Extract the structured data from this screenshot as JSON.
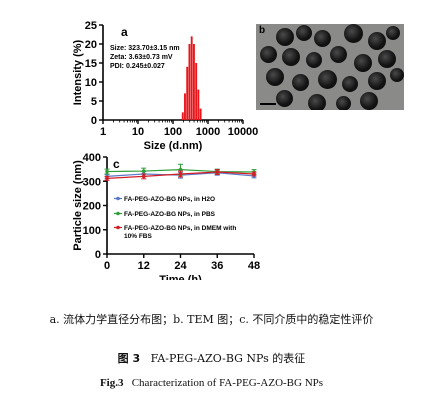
{
  "chart_data": [
    {
      "panel": "a",
      "type": "bar",
      "xlabel": "Size (d.nm)",
      "ylabel": "Intensity (%)",
      "xscale": "log",
      "xlim": [
        1,
        10000
      ],
      "ylim": [
        0,
        25
      ],
      "xticks": [
        "1",
        "10",
        "100",
        "1000",
        "10000"
      ],
      "yticks": [
        "0",
        "5",
        "10",
        "15",
        "20",
        "25"
      ],
      "color": "#e8161b",
      "x": [
        190,
        220,
        255,
        295,
        342,
        396,
        459,
        531,
        615
      ],
      "values": [
        2,
        7,
        14,
        20,
        22,
        20,
        15,
        8,
        3
      ],
      "annotations": [
        "Size: 323.70±3.15 nm",
        "Zeta: 3.63±0.73 mV",
        "PDI:   0.245±0.027"
      ]
    },
    {
      "panel": "c",
      "type": "line",
      "xlabel": "Time (h)",
      "ylabel": "Particle size (nm)",
      "xlim": [
        0,
        48
      ],
      "ylim": [
        0,
        400
      ],
      "xticks": [
        "0",
        "12",
        "24",
        "36",
        "48"
      ],
      "yticks": [
        "0",
        "100",
        "200",
        "300",
        "400"
      ],
      "legend_position": "left",
      "series": [
        {
          "name": "FA-PEG-AZO-BG NPs, in H2O",
          "color": "#5a78c8",
          "x": [
            0,
            12,
            24,
            36,
            48
          ],
          "values": [
            320,
            330,
            325,
            335,
            322
          ],
          "err": [
            8,
            10,
            12,
            10,
            8
          ]
        },
        {
          "name": "FA-PEG-AZO-BG NPs, in PBS",
          "color": "#2e9e3a",
          "x": [
            0,
            12,
            24,
            36,
            48
          ],
          "values": [
            340,
            342,
            348,
            340,
            338
          ],
          "err": [
            10,
            12,
            22,
            10,
            10
          ]
        },
        {
          "name": "FA-PEG-AZO-BG NPs, in DMEM with 10% FBS",
          "color": "#d41e25",
          "x": [
            0,
            12,
            24,
            36,
            48
          ],
          "values": [
            312,
            320,
            330,
            338,
            330
          ],
          "err": [
            8,
            10,
            12,
            10,
            8
          ]
        }
      ]
    }
  ],
  "tem_panel": {
    "label": "b"
  },
  "captions": {
    "subcaption": "a. 流体力学直径分布图；b. TEM 图；c. 不同介质中的稳定性评价",
    "cn_label": "图 3",
    "cn_text": "FA-PEG-AZO-BG NPs 的表征",
    "en_label": "Fig.3",
    "en_text": "Characterization of FA-PEG-AZO-BG NPs"
  }
}
